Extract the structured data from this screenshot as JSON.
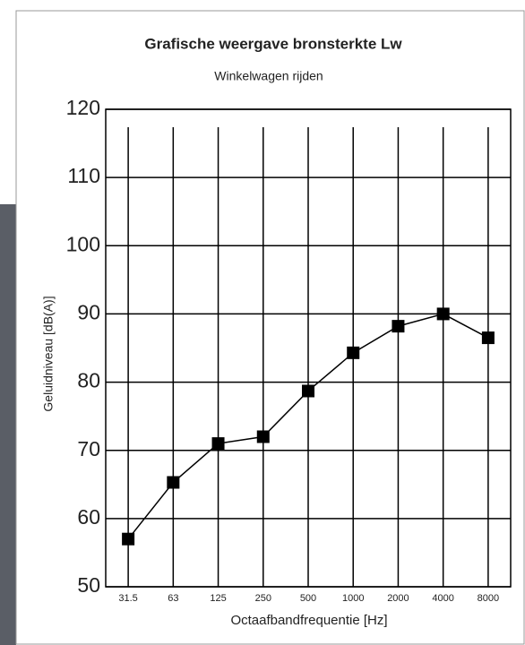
{
  "chart_data": {
    "type": "line",
    "title": "Grafische weergave bronsterkte Lw",
    "subtitle": "Winkelwagen rijden",
    "y_label": "Geluidniveau [dB(A)]",
    "x_label": "Octaafbandfrequentie [Hz]",
    "categories": [
      "31.5",
      "63",
      "125",
      "250",
      "500",
      "1000",
      "2000",
      "4000",
      "8000"
    ],
    "values": [
      57,
      65.3,
      71,
      72,
      78.7,
      84.3,
      88.2,
      90,
      86.5
    ],
    "color": "#000000",
    "ylim": [
      50,
      120
    ],
    "yticks": [
      50,
      60,
      70,
      80,
      90,
      100,
      110,
      120
    ],
    "grid": true
  }
}
